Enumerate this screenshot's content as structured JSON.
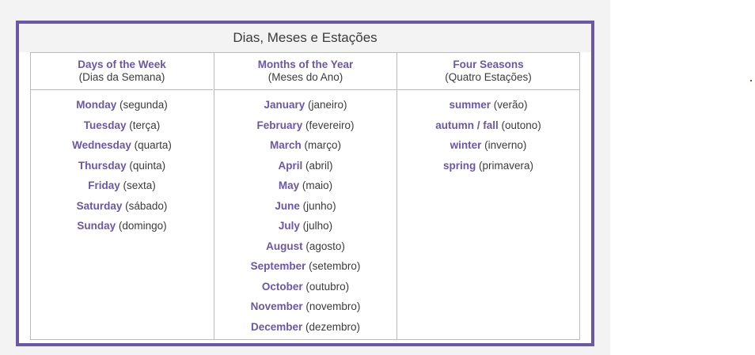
{
  "title": "Dias, Meses e Estações",
  "columns": [
    {
      "header_en": "Days of the Week",
      "header_pt": "(Dias da Semana)",
      "items": [
        {
          "en": "Monday",
          "pt": "(segunda)"
        },
        {
          "en": "Tuesday",
          "pt": "(terça)"
        },
        {
          "en": "Wednesday",
          "pt": "(quarta)"
        },
        {
          "en": "Thursday",
          "pt": "(quinta)"
        },
        {
          "en": "Friday",
          "pt": "(sexta)"
        },
        {
          "en": "Saturday",
          "pt": "(sábado)"
        },
        {
          "en": "Sunday",
          "pt": "(domingo)"
        }
      ]
    },
    {
      "header_en": "Months of the Year",
      "header_pt": "(Meses do Ano)",
      "items": [
        {
          "en": "January",
          "pt": "(janeiro)"
        },
        {
          "en": "February",
          "pt": "(fevereiro)"
        },
        {
          "en": "March",
          "pt": "(março)"
        },
        {
          "en": "April",
          "pt": "(abril)"
        },
        {
          "en": "May",
          "pt": "(maio)"
        },
        {
          "en": "June",
          "pt": "(junho)"
        },
        {
          "en": "July",
          "pt": "(julho)"
        },
        {
          "en": "August",
          "pt": "(agosto)"
        },
        {
          "en": "September",
          "pt": "(setembro)"
        },
        {
          "en": "October",
          "pt": "(outubro)"
        },
        {
          "en": "November",
          "pt": "(novembro)"
        },
        {
          "en": "December",
          "pt": "(dezembro)"
        }
      ]
    },
    {
      "header_en": "Four Seasons",
      "header_pt": "(Quatro Estações)",
      "items": [
        {
          "en": "summer",
          "pt": "(verão)"
        },
        {
          "en": "autumn / fall",
          "pt": "(outono)"
        },
        {
          "en": "winter",
          "pt": "(inverno)"
        },
        {
          "en": "spring",
          "pt": "(primavera)"
        }
      ]
    }
  ],
  "colors": {
    "accent": "#6b57a7",
    "text": "#3b3b3b",
    "border": "#bcbcbc",
    "marker": "#d12b2b"
  }
}
